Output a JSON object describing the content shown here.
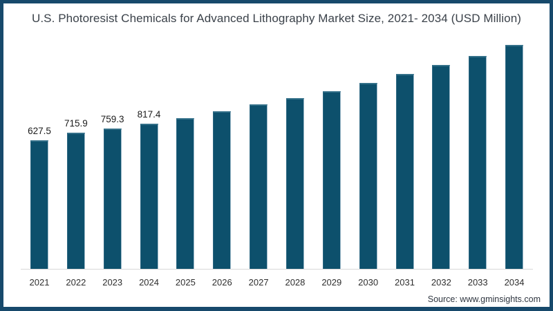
{
  "chart_data": {
    "type": "bar",
    "title": "U.S. Photoresist Chemicals for Advanced Lithography Market Size, 2021- 2034 (USD Million)",
    "categories": [
      "2021",
      "2022",
      "2023",
      "2024",
      "2025",
      "2026",
      "2027",
      "2028",
      "2029",
      "2030",
      "2031",
      "2032",
      "2033",
      "2034"
    ],
    "values": [
      627.5,
      715.9,
      759.3,
      817.4,
      883.0,
      956.4,
      1035.5,
      1112.2,
      1191.3,
      1283.9,
      1386.7,
      1489.6,
      1594.8,
      1718.9
    ],
    "data_labels": [
      "627.5",
      "715.9",
      "759.3",
      "817.4",
      "",
      "",
      "",
      "",
      "",
      "",
      "",
      "",
      "",
      ""
    ],
    "value_axis_hidden": true,
    "grid": false,
    "legend": false,
    "bar_color": "#0d506c"
  },
  "source": "Source: www.gminsights.com",
  "colors": {
    "frame_border": "#17496b",
    "bar": "#0d506c",
    "bar_top_highlight": "#337089",
    "axis_line": "#d8d8d8",
    "title_text": "#3a4149",
    "data_label_text": "#1b1b1b",
    "tick_text": "#2e2e2e",
    "source_text": "#2f3640",
    "background": "#ffffff"
  }
}
